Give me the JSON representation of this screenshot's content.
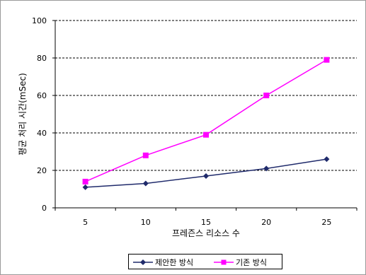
{
  "chart_data": {
    "type": "line",
    "title": "",
    "xlabel": "프레즌스 리소스 수",
    "ylabel": "평균 처리 시간(mSec)",
    "categories": [
      "5",
      "10",
      "15",
      "20",
      "25"
    ],
    "x": [
      5,
      10,
      15,
      20,
      25
    ],
    "ylim": [
      0,
      100
    ],
    "yticks": [
      "0",
      "20",
      "40",
      "60",
      "80",
      "100"
    ],
    "grid": "horizontal dashed",
    "legend_position": "bottom",
    "series": [
      {
        "name": "제안한 방식",
        "values": [
          11,
          13,
          17,
          21,
          26
        ],
        "color": "#1f2a6b",
        "marker": "diamond"
      },
      {
        "name": "기존 방식",
        "values": [
          14,
          28,
          39,
          60,
          79
        ],
        "color": "#ff00ff",
        "marker": "square"
      }
    ]
  }
}
